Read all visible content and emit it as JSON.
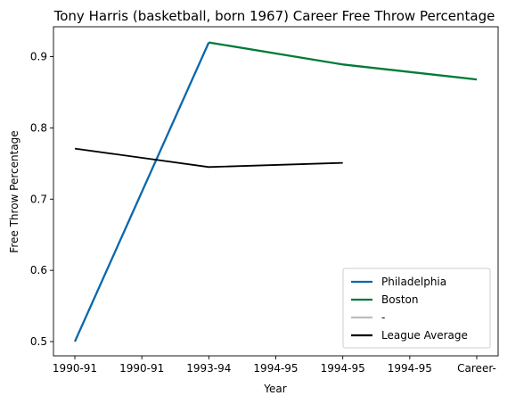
{
  "chart_data": {
    "type": "line",
    "title": "Tony Harris (basketball, born 1967) Career Free Throw Percentage",
    "xlabel": "Year",
    "ylabel": "Free Throw Percentage",
    "categories": [
      "1990-91",
      "1990-91",
      "1993-94",
      "1994-95",
      "1994-95",
      "1994-95",
      "Career-"
    ],
    "ylim": [
      0.48,
      0.942
    ],
    "yticks": [
      0.5,
      0.6,
      0.7,
      0.8,
      0.9
    ],
    "grid": false,
    "legend_position": "lower-right",
    "series": [
      {
        "name": "Philadelphia",
        "color": "#0868ac",
        "points": [
          [
            0,
            0.5
          ],
          [
            2,
            0.92
          ]
        ]
      },
      {
        "name": "Boston",
        "color": "#017a36",
        "points": [
          [
            2,
            0.92
          ],
          [
            4,
            0.889
          ],
          [
            6,
            0.868
          ]
        ]
      },
      {
        "name": "-",
        "color": "#bdbdbd",
        "points": []
      },
      {
        "name": "League Average",
        "color": "#000000",
        "points": [
          [
            0,
            0.771
          ],
          [
            2,
            0.745
          ],
          [
            4,
            0.751
          ]
        ]
      }
    ]
  }
}
